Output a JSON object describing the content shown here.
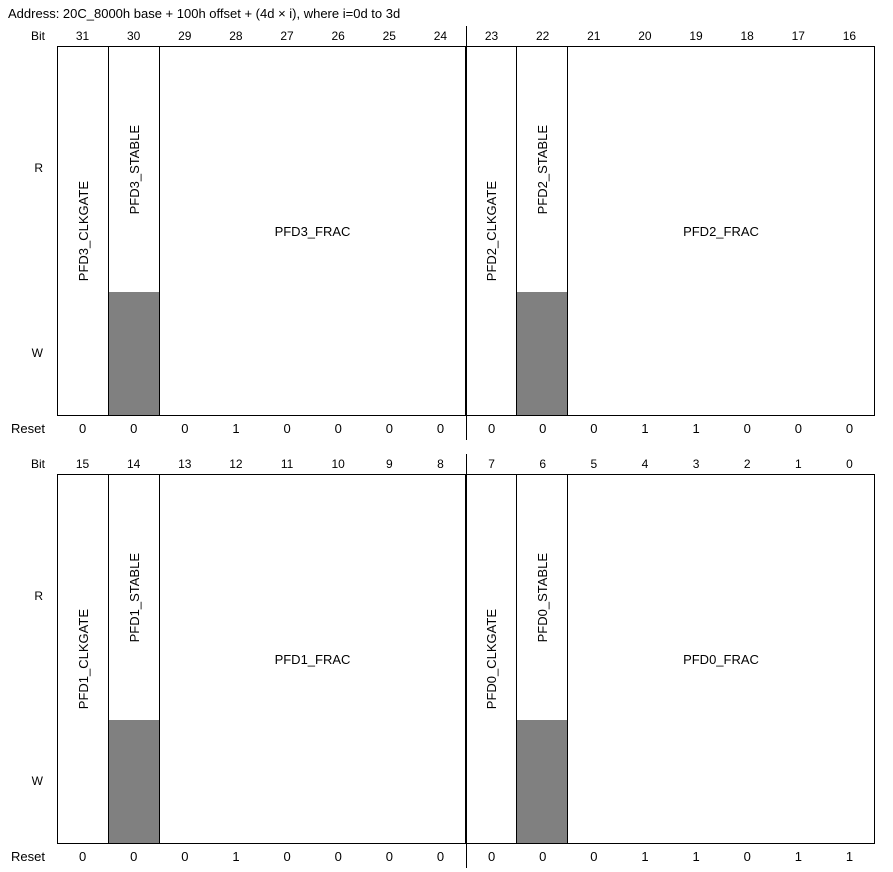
{
  "address_line": "Address: 20C_8000h base + 100h offset + (4d × i), where i=0d to 3d",
  "labels": {
    "bit": "Bit",
    "reset": "Reset",
    "read": "R",
    "write": "W"
  },
  "colors": {
    "border": "#000000",
    "readonly_shade": "#808080"
  },
  "diagrams": [
    {
      "bits": [
        "31",
        "30",
        "29",
        "28",
        "27",
        "26",
        "25",
        "24",
        "23",
        "22",
        "21",
        "20",
        "19",
        "18",
        "17",
        "16"
      ],
      "fields": [
        {
          "name": "PFD3_CLKGATE",
          "span": 1,
          "orientation": "vertical",
          "readonly": false
        },
        {
          "name": "PFD3_STABLE",
          "span": 1,
          "orientation": "vertical",
          "readonly": true
        },
        {
          "name": "PFD3_FRAC",
          "span": 6,
          "orientation": "horizontal",
          "readonly": false
        },
        {
          "name": "PFD2_CLKGATE",
          "span": 1,
          "orientation": "vertical",
          "readonly": false
        },
        {
          "name": "PFD2_STABLE",
          "span": 1,
          "orientation": "vertical",
          "readonly": true
        },
        {
          "name": "PFD2_FRAC",
          "span": 6,
          "orientation": "horizontal",
          "readonly": false
        }
      ],
      "reset": [
        "0",
        "0",
        "0",
        "1",
        "0",
        "0",
        "0",
        "0",
        "0",
        "0",
        "0",
        "1",
        "1",
        "0",
        "0",
        "0"
      ]
    },
    {
      "bits": [
        "15",
        "14",
        "13",
        "12",
        "11",
        "10",
        "9",
        "8",
        "7",
        "6",
        "5",
        "4",
        "3",
        "2",
        "1",
        "0"
      ],
      "fields": [
        {
          "name": "PFD1_CLKGATE",
          "span": 1,
          "orientation": "vertical",
          "readonly": false
        },
        {
          "name": "PFD1_STABLE",
          "span": 1,
          "orientation": "vertical",
          "readonly": true
        },
        {
          "name": "PFD1_FRAC",
          "span": 6,
          "orientation": "horizontal",
          "readonly": false
        },
        {
          "name": "PFD0_CLKGATE",
          "span": 1,
          "orientation": "vertical",
          "readonly": false
        },
        {
          "name": "PFD0_STABLE",
          "span": 1,
          "orientation": "vertical",
          "readonly": true
        },
        {
          "name": "PFD0_FRAC",
          "span": 6,
          "orientation": "horizontal",
          "readonly": false
        }
      ],
      "reset": [
        "0",
        "0",
        "0",
        "1",
        "0",
        "0",
        "0",
        "0",
        "0",
        "0",
        "0",
        "1",
        "1",
        "0",
        "1",
        "1"
      ]
    }
  ]
}
